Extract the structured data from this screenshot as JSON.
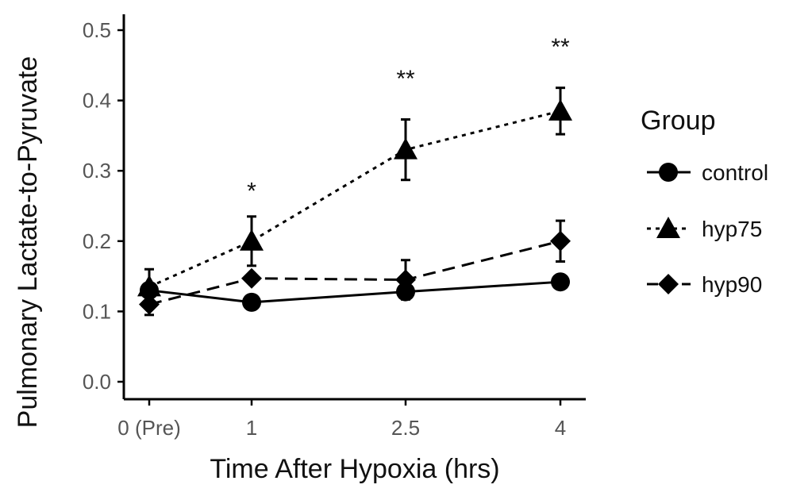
{
  "chart_data": {
    "type": "line",
    "title": "",
    "xlabel": "Time After Hypoxia (hrs)",
    "ylabel": "Pulmonary Lactate-to-Pyruvate",
    "categories": [
      "0 (Pre)",
      "1",
      "2.5",
      "4"
    ],
    "x": [
      0,
      1,
      2.5,
      4
    ],
    "ylim": [
      0,
      0.5
    ],
    "yticks": [
      0.0,
      0.1,
      0.2,
      0.3,
      0.4,
      0.5
    ],
    "ytick_labels": [
      "0.0",
      "0.1",
      "0.2",
      "0.3",
      "0.4",
      "0.5"
    ],
    "grid": false,
    "legend": {
      "title": "Group",
      "placement": "right"
    },
    "series": [
      {
        "name": "control",
        "marker": "circle",
        "linestyle": "solid",
        "values": [
          0.13,
          0.113,
          0.128,
          0.142
        ],
        "errors": [
          0.0,
          0.0,
          0.0,
          0.0
        ]
      },
      {
        "name": "hyp75",
        "marker": "triangle",
        "linestyle": "dotted",
        "values": [
          0.135,
          0.2,
          0.33,
          0.385
        ],
        "errors": [
          0.025,
          0.035,
          0.043,
          0.033
        ]
      },
      {
        "name": "hyp90",
        "marker": "diamond",
        "linestyle": "dashed",
        "values": [
          0.11,
          0.147,
          0.145,
          0.2
        ],
        "errors": [
          0.015,
          0.0,
          0.028,
          0.029
        ]
      }
    ],
    "annotations": [
      {
        "x": 1,
        "y": 0.26,
        "text": "*"
      },
      {
        "x": 2.5,
        "y": 0.42,
        "text": "**"
      },
      {
        "x": 4,
        "y": 0.465,
        "text": "**"
      }
    ],
    "colors": {
      "ink": "#000000",
      "tick_text": "#555555"
    }
  }
}
